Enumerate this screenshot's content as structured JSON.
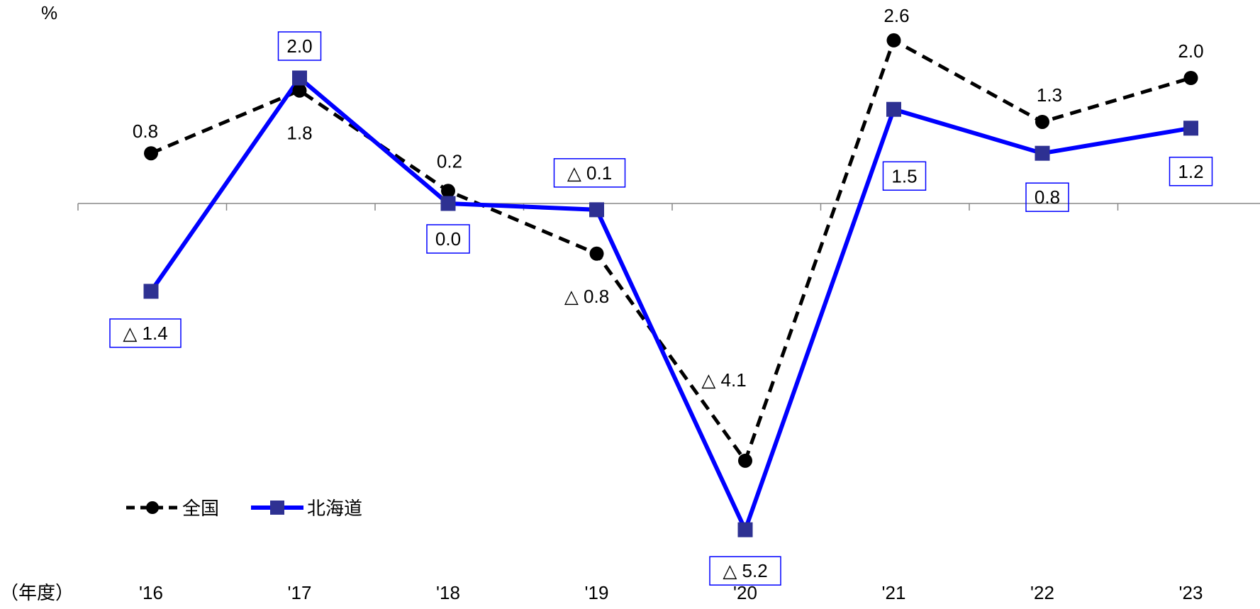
{
  "chart_data": {
    "type": "line",
    "ylabel": "%",
    "xlabel": "（年度）",
    "categories": [
      "'16",
      "'17",
      "'18",
      "'19",
      "'20",
      "'21",
      "'22",
      "'23"
    ],
    "ylim": [
      -5.5,
      2.8
    ],
    "grid": false,
    "legend_position": "bottom-left",
    "series": [
      {
        "name": "全国",
        "color": "#000000",
        "line_style": "dashed",
        "marker": "circle",
        "values": [
          0.8,
          1.8,
          0.2,
          -0.8,
          -4.1,
          2.6,
          1.3,
          2.0
        ],
        "labels": [
          "0.8",
          "1.8",
          "0.2",
          "△ 0.8",
          "△ 4.1",
          "2.6",
          "1.3",
          "2.0"
        ]
      },
      {
        "name": "北海道",
        "color": "#0000ff",
        "marker_color": "#2e3192",
        "line_style": "solid",
        "marker": "square",
        "values": [
          -1.4,
          2.0,
          0.0,
          -0.1,
          -5.2,
          1.5,
          0.8,
          1.2
        ],
        "labels": [
          "△ 1.4",
          "2.0",
          "0.0",
          "△ 0.1",
          "△ 5.2",
          "1.5",
          "0.8",
          "1.2"
        ]
      }
    ]
  }
}
